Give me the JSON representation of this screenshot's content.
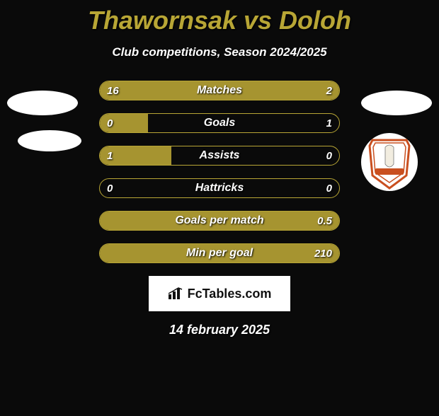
{
  "title": "Thawornsak vs Doloh",
  "subtitle": "Club competitions, Season 2024/2025",
  "colors": {
    "accent": "#b8a635",
    "bar_fill": "#a69430",
    "background": "#0a0a0a",
    "text": "#ffffff"
  },
  "stats": [
    {
      "label": "Matches",
      "left_val": "16",
      "right_val": "2",
      "left_pct": 80,
      "right_pct": 20,
      "mode": "split"
    },
    {
      "label": "Goals",
      "left_val": "0",
      "right_val": "1",
      "left_pct": 20,
      "right_pct": 0,
      "mode": "left"
    },
    {
      "label": "Assists",
      "left_val": "1",
      "right_val": "0",
      "left_pct": 30,
      "right_pct": 0,
      "mode": "left"
    },
    {
      "label": "Hattricks",
      "left_val": "0",
      "right_val": "0",
      "left_pct": 0,
      "right_pct": 0,
      "mode": "none"
    },
    {
      "label": "Goals per match",
      "left_val": "",
      "right_val": "0.5",
      "left_pct": 0,
      "right_pct": 0,
      "mode": "full"
    },
    {
      "label": "Min per goal",
      "left_val": "",
      "right_val": "210",
      "left_pct": 0,
      "right_pct": 0,
      "mode": "full"
    }
  ],
  "branding": {
    "label": "FcTables.com"
  },
  "date": "14 february 2025",
  "crest": {
    "border": "#c94f1f",
    "outline": "#f7f7f7",
    "field": "#ffffff",
    "banner": "#c94f1f"
  }
}
